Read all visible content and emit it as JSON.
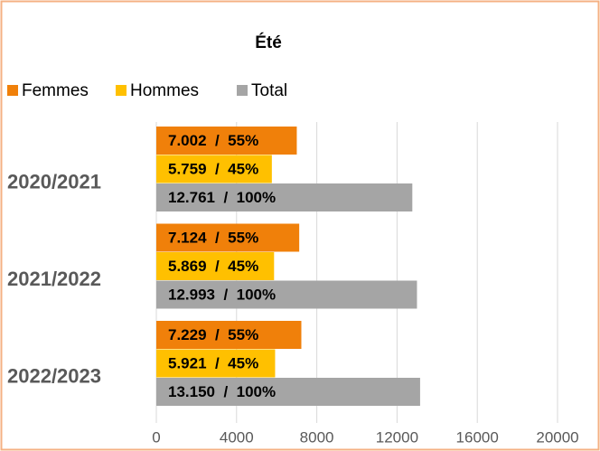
{
  "chart_data": {
    "type": "hbar",
    "title": "Été",
    "categories": [
      "2020/2021",
      "2021/2022",
      "2022/2023"
    ],
    "series": [
      {
        "name": "Femmes",
        "color": "#f0800a",
        "values": [
          7002,
          7124,
          7229
        ],
        "value_labels": [
          "7.002  /  55%",
          "7.124  /  55%",
          "7.229  /  55%"
        ]
      },
      {
        "name": "Hommes",
        "color": "#ffc000",
        "values": [
          5759,
          5869,
          5921
        ],
        "value_labels": [
          "5.759  /  45%",
          "5.869  /  45%",
          "5.921  /  45%"
        ]
      },
      {
        "name": "Total",
        "color": "#a5a5a5",
        "values": [
          12761,
          12993,
          13150
        ],
        "value_labels": [
          "12.761  /  100%",
          "12.993  /  100%",
          "13.150  /  100%"
        ]
      }
    ],
    "xlim": [
      0,
      20000
    ],
    "xticks": [
      0,
      4000,
      8000,
      12000,
      16000,
      20000
    ],
    "grid": true,
    "legend": "top-left"
  }
}
